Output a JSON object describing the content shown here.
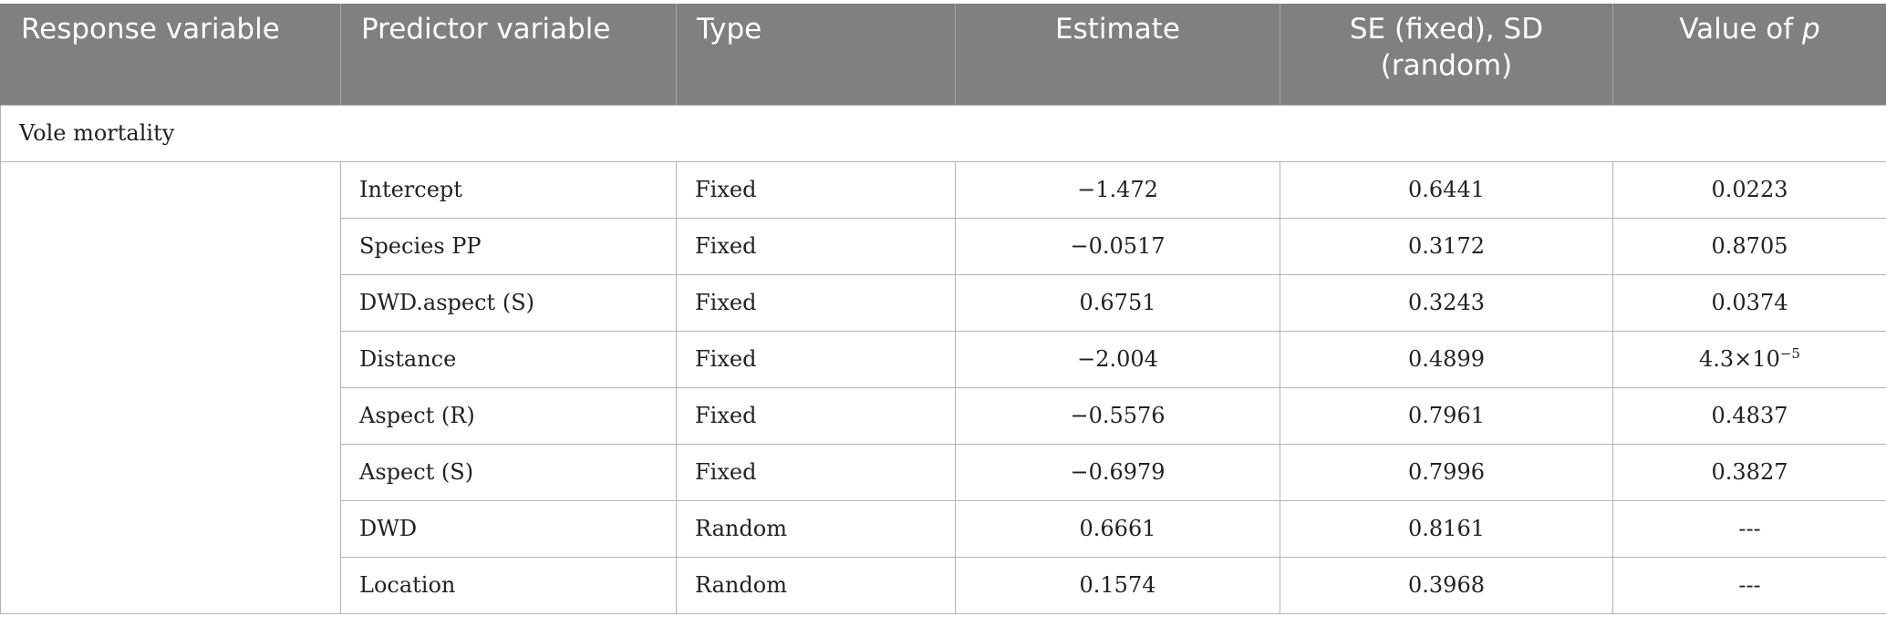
{
  "headers": {
    "response_variable": "Response variable",
    "predictor_variable": "Predictor variable",
    "type": "Type",
    "estimate": "Estimate",
    "se_line1": "SE (fixed), SD",
    "se_line2": "(random)",
    "p_value_prefix": "Value of ",
    "p_value_symbol": "p"
  },
  "section_label": "Vole mortality",
  "rows": [
    {
      "predictor": "Intercept",
      "type": "Fixed",
      "estimate": "−1.472",
      "se": "0.6441",
      "p": "0.0223"
    },
    {
      "predictor": "Species PP",
      "type": "Fixed",
      "estimate": "−0.0517",
      "se": "0.3172",
      "p": "0.8705"
    },
    {
      "predictor": "DWD.aspect (S)",
      "type": "Fixed",
      "estimate": "0.6751",
      "se": "0.3243",
      "p": "0.0374"
    },
    {
      "predictor": "Distance",
      "type": "Fixed",
      "estimate": "−2.004",
      "se": "0.4899",
      "p_base": "4.3×10",
      "p_exp": "−5"
    },
    {
      "predictor": "Aspect (R)",
      "type": "Fixed",
      "estimate": "−0.5576",
      "se": "0.7961",
      "p": "0.4837"
    },
    {
      "predictor": "Aspect (S)",
      "type": "Fixed",
      "estimate": "−0.6979",
      "se": "0.7996",
      "p": "0.3827"
    },
    {
      "predictor": "DWD",
      "type": "Random",
      "estimate": "0.6661",
      "se": "0.8161",
      "p": "---"
    },
    {
      "predictor": "Location",
      "type": "Random",
      "estimate": "0.1574",
      "se": "0.3968",
      "p": "---"
    }
  ]
}
